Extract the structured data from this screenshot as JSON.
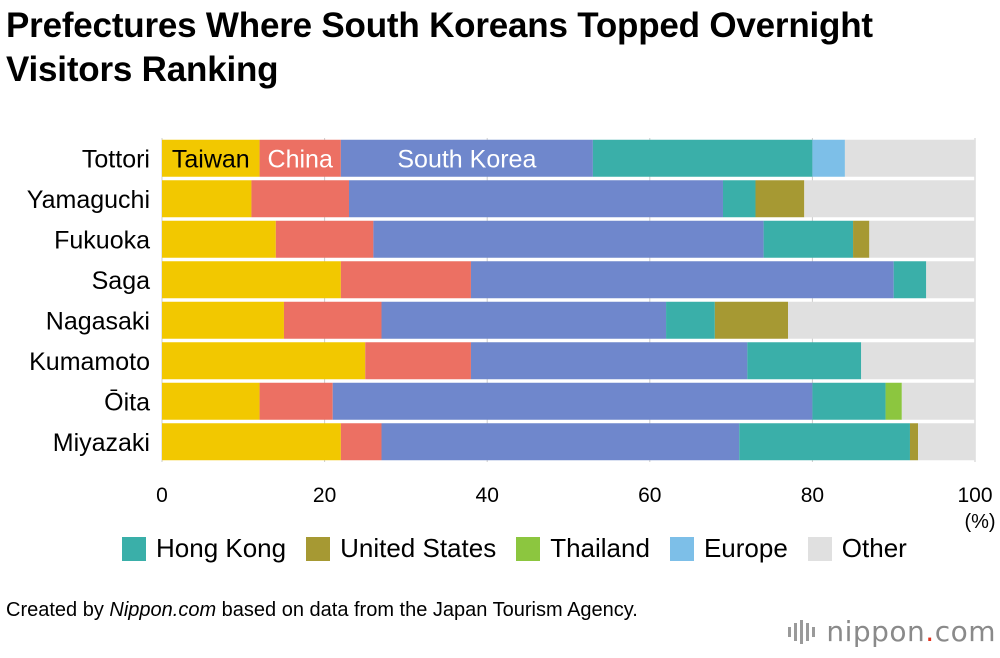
{
  "title": "Prefectures Where South Koreans Topped Overnight Visitors Ranking",
  "source": {
    "prefix": "Created by ",
    "site": "Nippon.com",
    "suffix": " based on data from the Japan Tourism Agency."
  },
  "logo": {
    "word": "nippon",
    "dot": ".",
    "tld": "com"
  },
  "chart_data": {
    "type": "bar",
    "orientation": "horizontal",
    "stacked": true,
    "categories": [
      "Tottori",
      "Yamaguchi",
      "Fukuoka",
      "Saga",
      "Nagasaki",
      "Kumamoto",
      "Ōita",
      "Miyazaki"
    ],
    "series": [
      {
        "name": "Taiwan",
        "color": "#f2c800",
        "values": [
          12,
          11,
          14,
          22,
          15,
          25,
          12,
          22
        ]
      },
      {
        "name": "China",
        "color": "#ec7063",
        "values": [
          10,
          12,
          12,
          16,
          12,
          13,
          9,
          5
        ]
      },
      {
        "name": "South Korea",
        "color": "#6f87cc",
        "values": [
          31,
          46,
          48,
          52,
          35,
          34,
          59,
          44
        ]
      },
      {
        "name": "Hong Kong",
        "color": "#3aafa9",
        "values": [
          27,
          4,
          11,
          4,
          6,
          14,
          9,
          21
        ]
      },
      {
        "name": "United States",
        "color": "#a69933",
        "values": [
          0,
          6,
          2,
          0,
          9,
          0,
          0,
          1
        ]
      },
      {
        "name": "Thailand",
        "color": "#8cc63f",
        "values": [
          0,
          0,
          0,
          0,
          0,
          0,
          2,
          0
        ]
      },
      {
        "name": "Europe",
        "color": "#7dbfe8",
        "values": [
          4,
          0,
          0,
          0,
          0,
          0,
          0,
          0
        ]
      },
      {
        "name": "Other",
        "color": "#e0e0e0",
        "values": [
          16,
          21,
          13,
          6,
          23,
          14,
          9,
          7
        ]
      }
    ],
    "inline_series_labels": [
      "Taiwan",
      "China",
      "South Korea"
    ],
    "legend_series": [
      "Hong Kong",
      "United States",
      "Thailand",
      "Europe",
      "Other"
    ],
    "xlim": [
      0,
      100
    ],
    "xticks": [
      "0",
      "20",
      "40",
      "60",
      "80",
      "100"
    ],
    "x_unit": "(%)",
    "grid": true,
    "legend": "bottom"
  }
}
